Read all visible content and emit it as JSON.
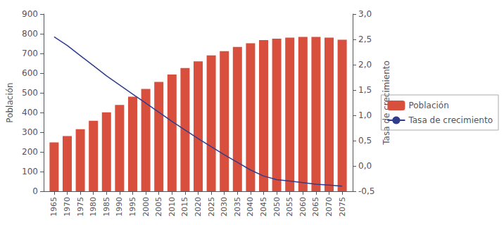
{
  "chart_data": {
    "type": "bar",
    "x": [
      1965,
      1970,
      1975,
      1980,
      1985,
      1990,
      1995,
      2000,
      2005,
      2010,
      2015,
      2020,
      2025,
      2030,
      2035,
      2040,
      2045,
      2050,
      2055,
      2060,
      2065,
      2070,
      2075
    ],
    "xlim": [
      1961,
      2079
    ],
    "xticks": [
      1965,
      1970,
      1975,
      1980,
      1985,
      1990,
      1995,
      2000,
      2005,
      2010,
      2015,
      2020,
      2025,
      2030,
      2035,
      2040,
      2045,
      2050,
      2055,
      2060,
      2065,
      2070,
      2075
    ],
    "ylabel": "Población",
    "ylim": [
      0,
      900
    ],
    "yticks": [
      0,
      100,
      200,
      300,
      400,
      500,
      600,
      700,
      800,
      900
    ],
    "y2label": "Tasa de crecimiento",
    "y2lim": [
      -0.5,
      3.0
    ],
    "y2ticks": [
      {
        "value": -0.5,
        "label": "-0,5"
      },
      {
        "value": 0.0,
        "label": "0,0"
      },
      {
        "value": 0.5,
        "label": "0,5"
      },
      {
        "value": 1.0,
        "label": "1,0"
      },
      {
        "value": 1.5,
        "label": "1,5"
      },
      {
        "value": 2.0,
        "label": "2,0"
      },
      {
        "value": 2.5,
        "label": "2,5"
      },
      {
        "value": 3.0,
        "label": "3,0"
      }
    ],
    "series": [
      {
        "name": "Población",
        "type": "bar",
        "color": "#d94f3d",
        "values": [
          248,
          280,
          315,
          358,
          401,
          438,
          480,
          520,
          555,
          593,
          626,
          660,
          690,
          712,
          733,
          752,
          768,
          775,
          780,
          784,
          784,
          780,
          770
        ]
      },
      {
        "name": "Tasa de crecimiento",
        "type": "line",
        "color": "#2f3d8a",
        "axis": "y2",
        "values": [
          2.55,
          2.38,
          2.18,
          1.98,
          1.78,
          1.6,
          1.42,
          1.24,
          1.06,
          0.88,
          0.71,
          0.54,
          0.38,
          0.22,
          0.07,
          -0.08,
          -0.2,
          -0.27,
          -0.3,
          -0.33,
          -0.36,
          -0.38,
          -0.4
        ]
      }
    ],
    "grid": false,
    "legend": "right"
  }
}
